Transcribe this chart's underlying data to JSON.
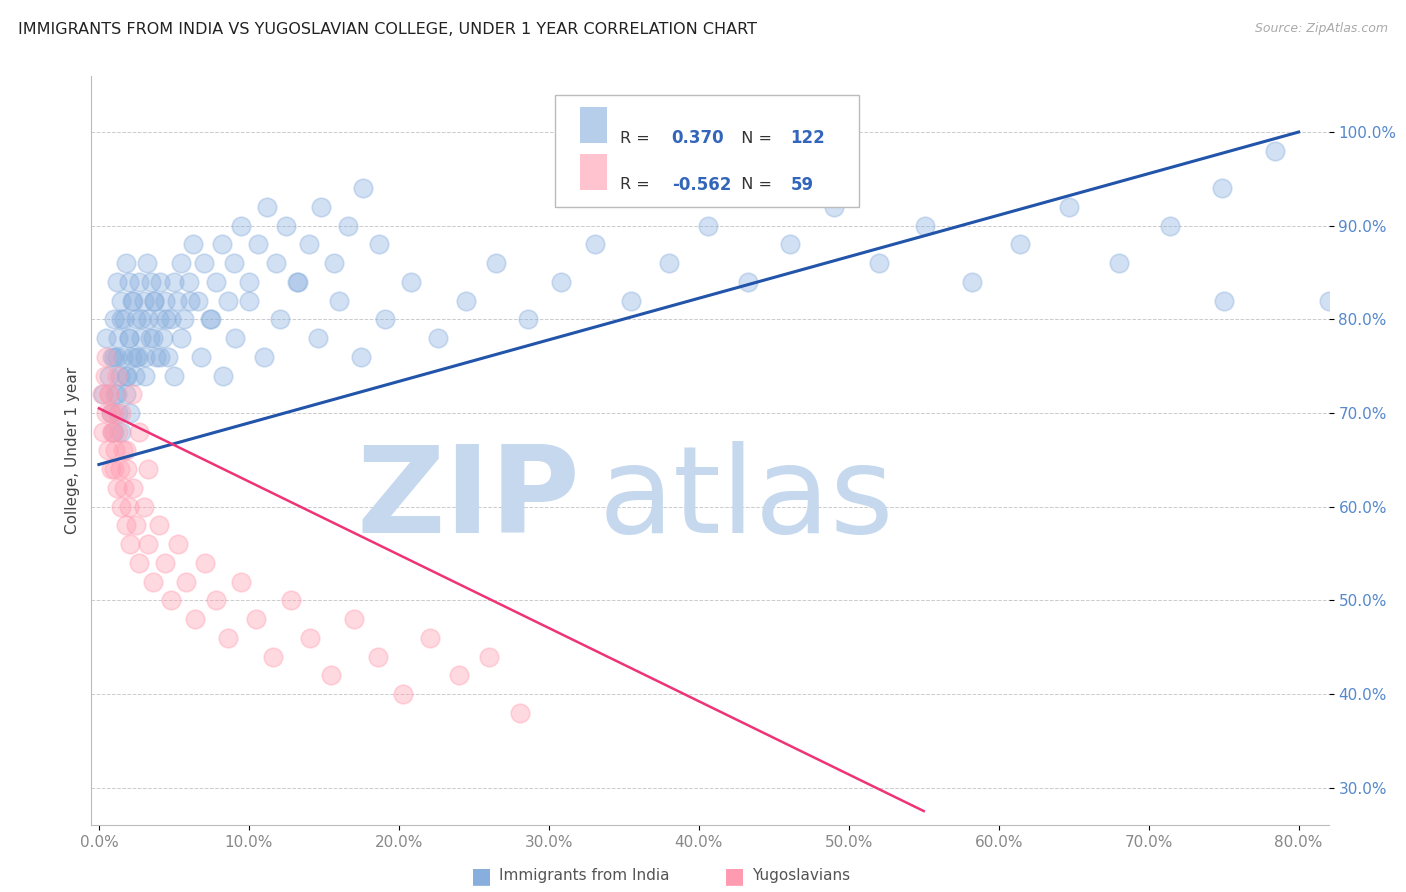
{
  "title": "IMMIGRANTS FROM INDIA VS YUGOSLAVIAN COLLEGE, UNDER 1 YEAR CORRELATION CHART",
  "source": "Source: ZipAtlas.com",
  "legend1": "Immigrants from India",
  "legend2": "Yugoslavians",
  "ylabel": "College, Under 1 year",
  "r1": 0.37,
  "n1": 122,
  "r2": -0.562,
  "n2": 59,
  "blue_color": "#88AEDD",
  "pink_color": "#FF9BB0",
  "blue_line_color": "#2255AA",
  "pink_line_color": "#EE3377",
  "xlim": [
    -0.005,
    0.82
  ],
  "ylim": [
    0.26,
    1.06
  ],
  "xtick_vals": [
    0.0,
    0.1,
    0.2,
    0.3,
    0.4,
    0.5,
    0.6,
    0.7,
    0.8
  ],
  "ytick_vals": [
    0.3,
    0.4,
    0.5,
    0.6,
    0.7,
    0.8,
    0.9,
    1.0
  ],
  "blue_trend": [
    0.0,
    0.8,
    0.645,
    1.0
  ],
  "pink_trend": [
    0.0,
    0.55,
    0.705,
    0.275
  ],
  "watermark_zip": "ZIP",
  "watermark_atlas": "atlas",
  "wm_color": "#C5D8EE",
  "bg_color": "#FFFFFF",
  "grid_color": "#CCCCCC",
  "ytick_color": "#5588CC",
  "xtick_color": "#888888",
  "seed": 99,
  "blue_pts_x": [
    0.003,
    0.005,
    0.007,
    0.008,
    0.009,
    0.01,
    0.01,
    0.011,
    0.012,
    0.012,
    0.013,
    0.013,
    0.014,
    0.015,
    0.015,
    0.016,
    0.017,
    0.018,
    0.018,
    0.019,
    0.02,
    0.02,
    0.021,
    0.022,
    0.023,
    0.024,
    0.025,
    0.026,
    0.027,
    0.028,
    0.03,
    0.031,
    0.032,
    0.033,
    0.035,
    0.036,
    0.037,
    0.038,
    0.04,
    0.041,
    0.043,
    0.044,
    0.046,
    0.048,
    0.05,
    0.052,
    0.055,
    0.057,
    0.06,
    0.063,
    0.066,
    0.07,
    0.074,
    0.078,
    0.082,
    0.086,
    0.09,
    0.095,
    0.1,
    0.106,
    0.112,
    0.118,
    0.125,
    0.132,
    0.14,
    0.148,
    0.157,
    0.166,
    0.176,
    0.187,
    0.01,
    0.012,
    0.015,
    0.018,
    0.02,
    0.022,
    0.025,
    0.028,
    0.031,
    0.034,
    0.037,
    0.041,
    0.045,
    0.05,
    0.055,
    0.061,
    0.068,
    0.075,
    0.083,
    0.091,
    0.1,
    0.11,
    0.121,
    0.133,
    0.146,
    0.16,
    0.175,
    0.191,
    0.208,
    0.226,
    0.245,
    0.265,
    0.286,
    0.308,
    0.331,
    0.355,
    0.38,
    0.406,
    0.433,
    0.461,
    0.49,
    0.52,
    0.551,
    0.582,
    0.614,
    0.647,
    0.68,
    0.714,
    0.749,
    0.784,
    0.82,
    0.75
  ],
  "blue_pts_y": [
    0.72,
    0.78,
    0.74,
    0.7,
    0.76,
    0.68,
    0.8,
    0.72,
    0.84,
    0.76,
    0.7,
    0.78,
    0.74,
    0.82,
    0.68,
    0.76,
    0.8,
    0.72,
    0.86,
    0.74,
    0.78,
    0.84,
    0.7,
    0.76,
    0.82,
    0.74,
    0.8,
    0.76,
    0.84,
    0.78,
    0.82,
    0.76,
    0.86,
    0.8,
    0.84,
    0.78,
    0.82,
    0.76,
    0.8,
    0.84,
    0.78,
    0.82,
    0.76,
    0.8,
    0.84,
    0.82,
    0.86,
    0.8,
    0.84,
    0.88,
    0.82,
    0.86,
    0.8,
    0.84,
    0.88,
    0.82,
    0.86,
    0.9,
    0.84,
    0.88,
    0.92,
    0.86,
    0.9,
    0.84,
    0.88,
    0.92,
    0.86,
    0.9,
    0.94,
    0.88,
    0.76,
    0.72,
    0.8,
    0.74,
    0.78,
    0.82,
    0.76,
    0.8,
    0.74,
    0.78,
    0.82,
    0.76,
    0.8,
    0.74,
    0.78,
    0.82,
    0.76,
    0.8,
    0.74,
    0.78,
    0.82,
    0.76,
    0.8,
    0.84,
    0.78,
    0.82,
    0.76,
    0.8,
    0.84,
    0.78,
    0.82,
    0.86,
    0.8,
    0.84,
    0.88,
    0.82,
    0.86,
    0.9,
    0.84,
    0.88,
    0.92,
    0.86,
    0.9,
    0.84,
    0.88,
    0.92,
    0.86,
    0.9,
    0.94,
    0.98,
    0.82,
    0.82
  ],
  "pink_pts_x": [
    0.002,
    0.003,
    0.004,
    0.005,
    0.006,
    0.007,
    0.008,
    0.008,
    0.009,
    0.01,
    0.01,
    0.011,
    0.012,
    0.013,
    0.014,
    0.015,
    0.016,
    0.017,
    0.018,
    0.019,
    0.02,
    0.021,
    0.023,
    0.025,
    0.027,
    0.03,
    0.033,
    0.036,
    0.04,
    0.044,
    0.048,
    0.053,
    0.058,
    0.064,
    0.071,
    0.078,
    0.086,
    0.095,
    0.105,
    0.116,
    0.128,
    0.141,
    0.155,
    0.17,
    0.186,
    0.203,
    0.221,
    0.24,
    0.26,
    0.281,
    0.005,
    0.007,
    0.009,
    0.012,
    0.015,
    0.018,
    0.022,
    0.027,
    0.033
  ],
  "pink_pts_y": [
    0.72,
    0.68,
    0.74,
    0.7,
    0.66,
    0.72,
    0.64,
    0.7,
    0.68,
    0.64,
    0.7,
    0.66,
    0.62,
    0.68,
    0.64,
    0.6,
    0.66,
    0.62,
    0.58,
    0.64,
    0.6,
    0.56,
    0.62,
    0.58,
    0.54,
    0.6,
    0.56,
    0.52,
    0.58,
    0.54,
    0.5,
    0.56,
    0.52,
    0.48,
    0.54,
    0.5,
    0.46,
    0.52,
    0.48,
    0.44,
    0.5,
    0.46,
    0.42,
    0.48,
    0.44,
    0.4,
    0.46,
    0.42,
    0.44,
    0.38,
    0.76,
    0.72,
    0.68,
    0.74,
    0.7,
    0.66,
    0.72,
    0.68,
    0.64
  ]
}
